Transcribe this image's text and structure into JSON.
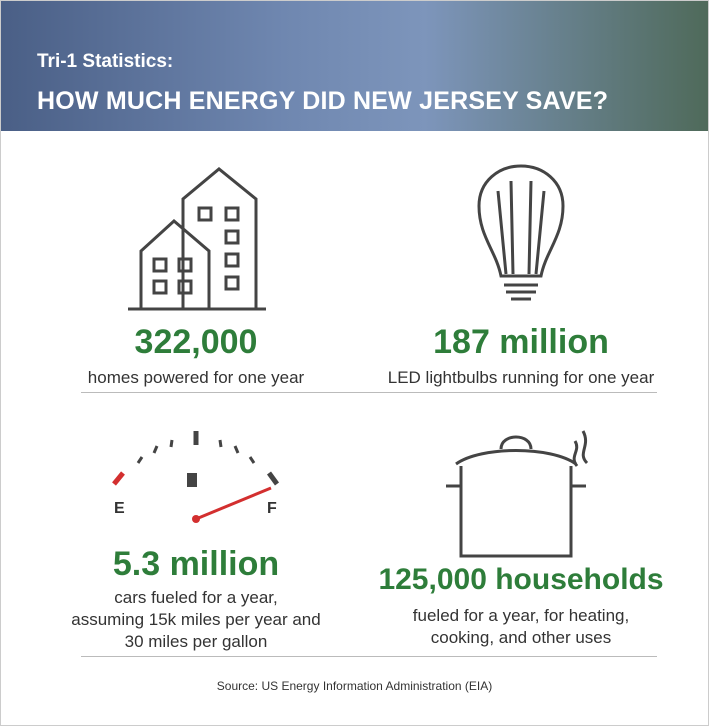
{
  "header": {
    "subtitle": "Tri-1 Statistics:",
    "title": "HOW MUCH ENERGY DID NEW JERSEY SAVE?"
  },
  "stats": [
    {
      "value": "322,000",
      "description": [
        "homes powered for one year"
      ]
    },
    {
      "value": "187 million",
      "description": [
        "LED lightbulbs running for one year"
      ]
    },
    {
      "value": "5.3 million",
      "description": [
        "cars fueled for a year,",
        "assuming 15k miles per year and",
        "30 miles per gallon"
      ],
      "gauge_labels": [
        "E",
        "F"
      ]
    },
    {
      "value": "125,000 households",
      "description": [
        "fueled for a year, for heating,",
        "cooking, and other uses"
      ]
    }
  ],
  "source": "Source:  US Energy Information Administration (EIA)"
}
